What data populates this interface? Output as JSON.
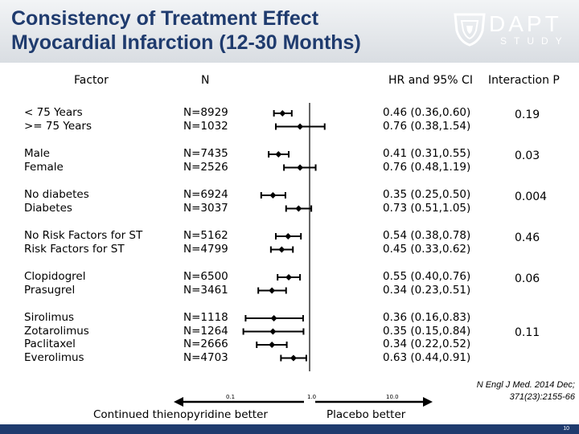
{
  "slide": {
    "title_line1": "Consistency of Treatment Effect",
    "title_line2": "Myocardial Infarction (12-30 Months)",
    "logo_text": "DAPT",
    "logo_subtext": "STUDY",
    "page_number": "10"
  },
  "columns": {
    "factor": "Factor",
    "n": "N",
    "hr": "HR and 95% CI",
    "interaction": "Interaction P"
  },
  "citation": {
    "line1": "N Engl J Med. 2014 Dec;",
    "line2": "371(23):2155-66"
  },
  "chart_data": {
    "type": "forest",
    "x_scale": "log",
    "xlim": [
      0.1,
      10.0
    ],
    "x_ticks": [
      "0.1",
      "1.0",
      "10.0"
    ],
    "reference_line": 1.0,
    "left_arrow_label": "Continued thienopyridine better",
    "right_arrow_label": "Placebo better",
    "groups": [
      {
        "interaction_p": "0.19",
        "rows": [
          {
            "factor": "< 75 Years",
            "n": "N=8929",
            "hr_text": "0.46 (0.36,0.60)",
            "hr": 0.46,
            "lo": 0.36,
            "hi": 0.6
          },
          {
            "factor": ">= 75 Years",
            "n": "N=1032",
            "hr_text": "0.76 (0.38,1.54)",
            "hr": 0.76,
            "lo": 0.38,
            "hi": 1.54
          }
        ]
      },
      {
        "interaction_p": "0.03",
        "rows": [
          {
            "factor": "Male",
            "n": "N=7435",
            "hr_text": "0.41 (0.31,0.55)",
            "hr": 0.41,
            "lo": 0.31,
            "hi": 0.55
          },
          {
            "factor": "Female",
            "n": "N=2526",
            "hr_text": "0.76 (0.48,1.19)",
            "hr": 0.76,
            "lo": 0.48,
            "hi": 1.19
          }
        ]
      },
      {
        "interaction_p": "0.004",
        "rows": [
          {
            "factor": "No diabetes",
            "n": "N=6924",
            "hr_text": "0.35 (0.25,0.50)",
            "hr": 0.35,
            "lo": 0.25,
            "hi": 0.5
          },
          {
            "factor": "Diabetes",
            "n": "N=3037",
            "hr_text": "0.73 (0.51,1.05)",
            "hr": 0.73,
            "lo": 0.51,
            "hi": 1.05
          }
        ]
      },
      {
        "interaction_p": "0.46",
        "rows": [
          {
            "factor": "No Risk Factors for ST",
            "n": "N=5162",
            "hr_text": "0.54 (0.38,0.78)",
            "hr": 0.54,
            "lo": 0.38,
            "hi": 0.78
          },
          {
            "factor": "Risk Factors for ST",
            "n": "N=4799",
            "hr_text": "0.45 (0.33,0.62)",
            "hr": 0.45,
            "lo": 0.33,
            "hi": 0.62
          }
        ]
      },
      {
        "interaction_p": "0.06",
        "rows": [
          {
            "factor": "Clopidogrel",
            "n": "N=6500",
            "hr_text": "0.55 (0.40,0.76)",
            "hr": 0.55,
            "lo": 0.4,
            "hi": 0.76
          },
          {
            "factor": "Prasugrel",
            "n": "N=3461",
            "hr_text": "0.34 (0.23,0.51)",
            "hr": 0.34,
            "lo": 0.23,
            "hi": 0.51
          }
        ]
      },
      {
        "interaction_p": "0.11",
        "rows": [
          {
            "factor": "Sirolimus",
            "n": "N=1118",
            "hr_text": "0.36 (0.16,0.83)",
            "hr": 0.36,
            "lo": 0.16,
            "hi": 0.83
          },
          {
            "factor": "Zotarolimus",
            "n": "N=1264",
            "hr_text": "0.35 (0.15,0.84)",
            "hr": 0.35,
            "lo": 0.15,
            "hi": 0.84
          },
          {
            "factor": "Paclitaxel",
            "n": "N=2666",
            "hr_text": "0.34 (0.22,0.52)",
            "hr": 0.34,
            "lo": 0.22,
            "hi": 0.52
          },
          {
            "factor": "Everolimus",
            "n": "N=4703",
            "hr_text": "0.63 (0.44,0.91)",
            "hr": 0.63,
            "lo": 0.44,
            "hi": 0.91
          }
        ]
      }
    ]
  }
}
